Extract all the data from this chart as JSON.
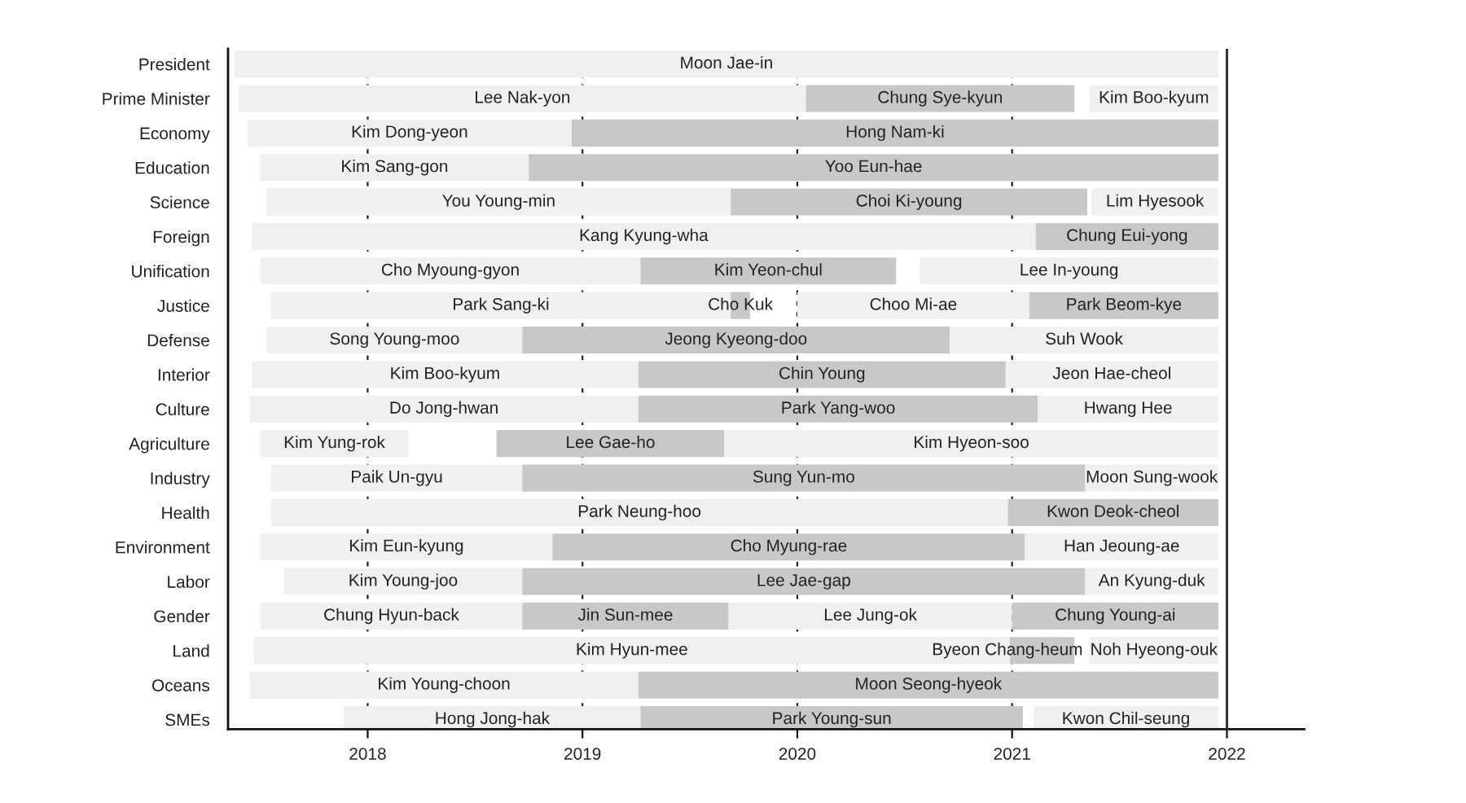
{
  "chart_data": {
    "type": "bar",
    "orientation": "horizontal",
    "categories": [
      "President",
      "Prime Minister",
      "Economy",
      "Education",
      "Science",
      "Foreign",
      "Unification",
      "Justice",
      "Defense",
      "Interior",
      "Culture",
      "Agriculture",
      "Industry",
      "Health",
      "Environment",
      "Labor",
      "Gender",
      "Land",
      "Oceans",
      "SMEs"
    ],
    "series": [
      {
        "color": "#f0f0f0",
        "base": [
          2017.38,
          2017.4,
          2017.44,
          2017.5,
          2017.53,
          2017.46,
          2017.5,
          2017.55,
          2017.53,
          2017.46,
          2017.45,
          2017.5,
          2017.55,
          2017.55,
          2017.5,
          2017.61,
          2017.5,
          2017.47,
          2017.45,
          2017.89
        ],
        "values": [
          4.58,
          2.64,
          1.51,
          1.25,
          2.16,
          3.65,
          1.77,
          2.14,
          1.19,
          1.8,
          1.81,
          0.69,
          1.17,
          3.43,
          1.36,
          1.11,
          1.22,
          3.52,
          1.81,
          1.38
        ],
        "value_labels": [
          "Moon Jae-in",
          "Lee Nak-yon",
          "Kim Dong-yeon",
          "Kim Sang-gon",
          "You Young-min",
          "Kang Kyung-wha",
          "Cho Myoung-gyon",
          "Park Sang-ki",
          "Song Young-moo",
          "Kim Boo-kyum",
          "Do Jong-hwan",
          "Kim Yung-rok",
          "Paik Un-gyu",
          "Park Neung-hoo",
          "Kim Eun-kyung",
          "Kim Young-joo",
          "Chung Hyun-back",
          "Kim Hyun-mee",
          "Kim Young-choon",
          "Hong Jong-hak"
        ]
      },
      {
        "color": "#c8c8c8",
        "base": [
          null,
          2020.04,
          2018.95,
          2018.75,
          2019.69,
          2021.11,
          2019.27,
          2019.69,
          2018.72,
          2019.26,
          2019.26,
          2018.6,
          2018.72,
          2020.98,
          2018.86,
          2018.72,
          2018.72,
          2020.99,
          2019.26,
          2019.27
        ],
        "values": [
          null,
          1.25,
          3.01,
          3.21,
          1.66,
          0.85,
          1.19,
          0.09,
          1.99,
          1.71,
          1.86,
          1.06,
          2.62,
          0.98,
          2.2,
          2.62,
          0.96,
          0.3,
          2.7,
          1.78
        ],
        "value_labels": [
          null,
          "Chung Sye-kyun",
          "Hong Nam-ki",
          "Yoo Eun-hae",
          "Choi Ki-young",
          "Chung Eui-yong",
          "Kim Yeon-chul",
          "Cho Kuk",
          "Jeong Kyeong-doo",
          "Chin Young",
          "Park Yang-woo",
          "Lee Gae-ho",
          "Sung Yun-mo",
          "Kwon Deok-cheol",
          "Cho Myung-rae",
          "Lee Jae-gap",
          "Jin Sun-mee",
          "Byeon Chang-heum",
          "Moon Seong-hyeok",
          "Park Young-sun"
        ]
      },
      {
        "color": "#f0f0f0",
        "base": [
          null,
          2021.36,
          null,
          null,
          2021.37,
          null,
          2020.57,
          2020.0,
          2020.71,
          2020.97,
          2021.12,
          2019.66,
          2021.34,
          null,
          2021.06,
          2021.34,
          2019.68,
          2021.36,
          null,
          2021.1
        ],
        "values": [
          null,
          0.6,
          null,
          null,
          0.59,
          null,
          1.39,
          1.08,
          1.25,
          0.99,
          0.84,
          2.3,
          0.62,
          null,
          0.9,
          0.62,
          1.32,
          0.6,
          null,
          0.86
        ],
        "value_labels": [
          null,
          "Kim Boo-kyum",
          null,
          null,
          "Lim Hyesook",
          null,
          "Lee In-young",
          "Choo Mi-ae",
          "Suh Wook",
          "Jeon Hae-cheol",
          "Hwang Hee",
          "Kim Hyeon-soo",
          "Moon Sung-wook",
          null,
          "Han Jeoung-ae",
          "An Kyung-duk",
          "Lee Jung-ok",
          "Noh Hyeong-ouk",
          null,
          "Kwon Chil-seung"
        ]
      },
      {
        "color": "#c8c8c8",
        "base": [
          null,
          null,
          null,
          null,
          null,
          null,
          null,
          2021.08,
          null,
          null,
          null,
          null,
          null,
          null,
          null,
          null,
          2021.0,
          null,
          null,
          null
        ],
        "values": [
          null,
          null,
          null,
          null,
          null,
          null,
          null,
          0.88,
          null,
          null,
          null,
          null,
          null,
          null,
          null,
          null,
          0.96,
          null,
          null,
          null
        ],
        "value_labels": [
          null,
          null,
          null,
          null,
          null,
          null,
          null,
          "Park Beom-kye",
          null,
          null,
          null,
          null,
          null,
          null,
          null,
          null,
          "Chung Young-ai",
          null,
          null,
          null
        ]
      }
    ],
    "xlim": [
      2017.35,
      2022.36
    ],
    "xticks": [
      2018,
      2019,
      2020,
      2021,
      2022
    ],
    "grid": "x",
    "ref_lines": [
      {
        "axis": "x",
        "value": 2022,
        "color": "#333333",
        "line_style": "solid"
      }
    ]
  }
}
